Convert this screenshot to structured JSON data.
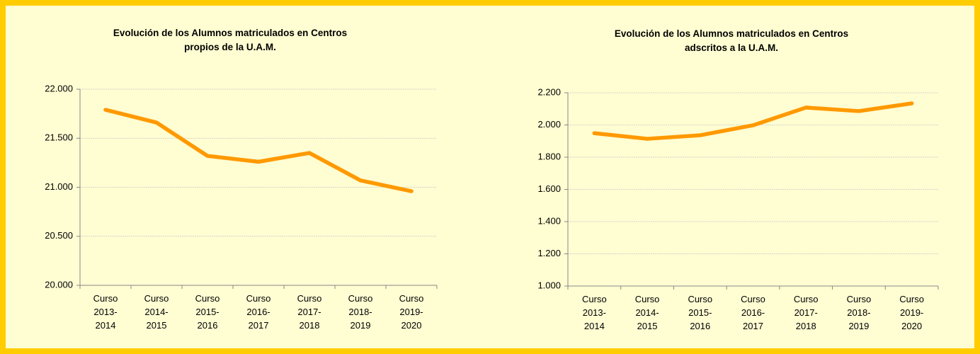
{
  "chart_data": [
    {
      "type": "line",
      "title": "Evolución de los Alumnos matriculados en Centros propios de la U.A.M.",
      "categories": [
        "Curso 2013-2014",
        "Curso 2014-2015",
        "Curso 2015-2016",
        "Curso 2016-2017",
        "Curso 2017-2018",
        "Curso 2018-2019",
        "Curso 2019-2020"
      ],
      "series": [
        {
          "color": "#ff9900",
          "values": [
            21790,
            21660,
            21320,
            21260,
            21350,
            21070,
            20960
          ]
        }
      ],
      "ylim": [
        20000,
        22000
      ],
      "yticks": [
        {
          "value": 20000,
          "label": "20.000"
        },
        {
          "value": 20500,
          "label": "20.500"
        },
        {
          "value": 21000,
          "label": "21.000"
        },
        {
          "value": 21500,
          "label": "21.500"
        },
        {
          "value": 22000,
          "label": "22.000"
        }
      ],
      "grid": true
    },
    {
      "type": "line",
      "title": "Evolución de los Alumnos matriculados en Centros adscritos a la U.A.M.",
      "categories": [
        "Curso 2013-2014",
        "Curso 2014-2015",
        "Curso 2015-2016",
        "Curso 2016-2017",
        "Curso 2017-2018",
        "Curso 2018-2019",
        "Curso 2019-2020"
      ],
      "series": [
        {
          "color": "#ff9900",
          "values": [
            1949,
            1914,
            1936,
            1998,
            2108,
            2086,
            2134
          ]
        }
      ],
      "ylim": [
        1000,
        2200
      ],
      "yticks": [
        {
          "value": 1000,
          "label": "1.000"
        },
        {
          "value": 1200,
          "label": "1.200"
        },
        {
          "value": 1400,
          "label": "1.400"
        },
        {
          "value": 1600,
          "label": "1.600"
        },
        {
          "value": 1800,
          "label": "1.800"
        },
        {
          "value": 2000,
          "label": "2.000"
        },
        {
          "value": 2200,
          "label": "2.200"
        }
      ],
      "grid": true
    }
  ]
}
